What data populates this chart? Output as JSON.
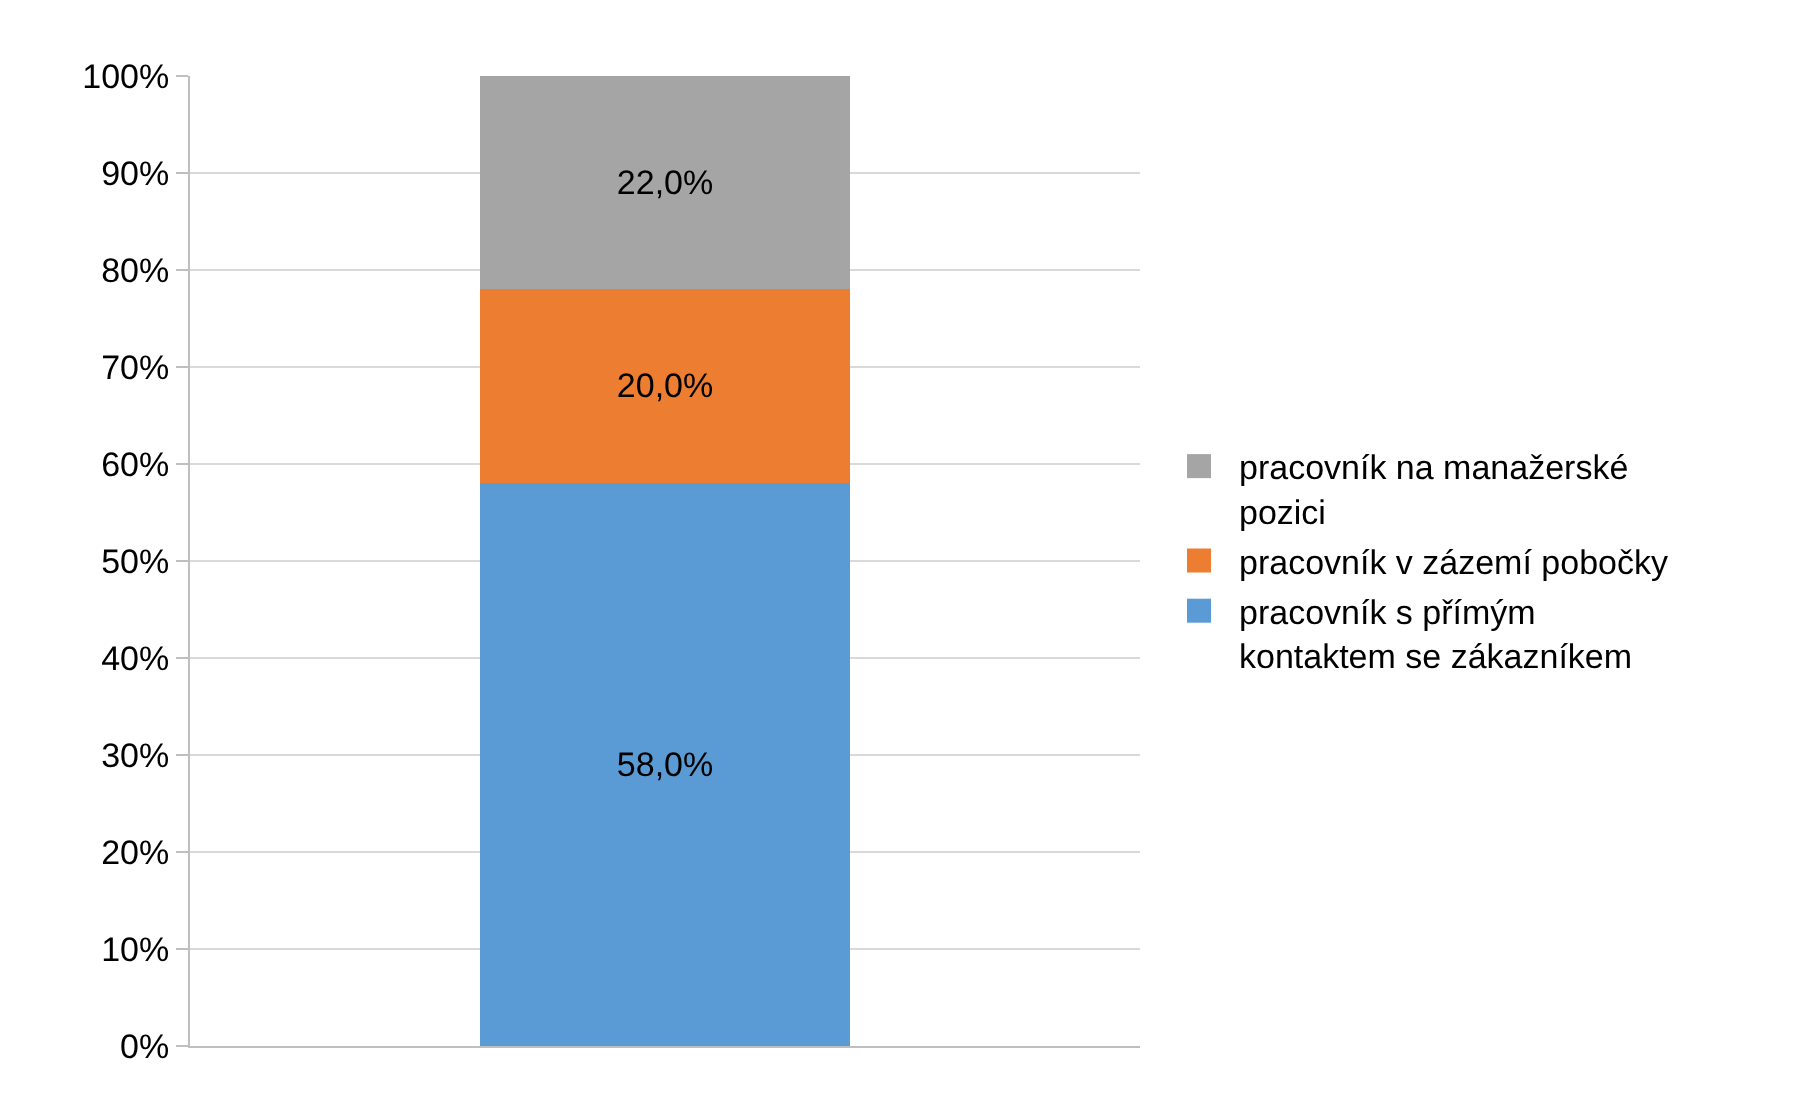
{
  "chart_data": {
    "type": "bar",
    "stacked": true,
    "categories": [
      null
    ],
    "series": [
      {
        "name": "pracovník s přímým kontaktem se zákazníkem",
        "color": "#5b9bd5",
        "values": [
          58
        ],
        "value_labels": [
          "58,0%"
        ]
      },
      {
        "name": "pracovník v zázemí pobočky",
        "color": "#ed7d31",
        "values": [
          20
        ],
        "value_labels": [
          "20,0%"
        ]
      },
      {
        "name": "pracovník na manažerské pozici",
        "color": "#a5a5a5",
        "values": [
          22
        ],
        "value_labels": [
          "22,0%"
        ]
      }
    ],
    "ylim": [
      0,
      100
    ],
    "yticks": [
      {
        "value": 0,
        "label": "0%"
      },
      {
        "value": 10,
        "label": "10%"
      },
      {
        "value": 20,
        "label": "20%"
      },
      {
        "value": 30,
        "label": "30%"
      },
      {
        "value": 40,
        "label": "40%"
      },
      {
        "value": 50,
        "label": "50%"
      },
      {
        "value": 60,
        "label": "60%"
      },
      {
        "value": 70,
        "label": "70%"
      },
      {
        "value": 80,
        "label": "80%"
      },
      {
        "value": 90,
        "label": "90%"
      },
      {
        "value": 100,
        "label": "100%"
      }
    ],
    "grid": "y",
    "legend": "right"
  }
}
